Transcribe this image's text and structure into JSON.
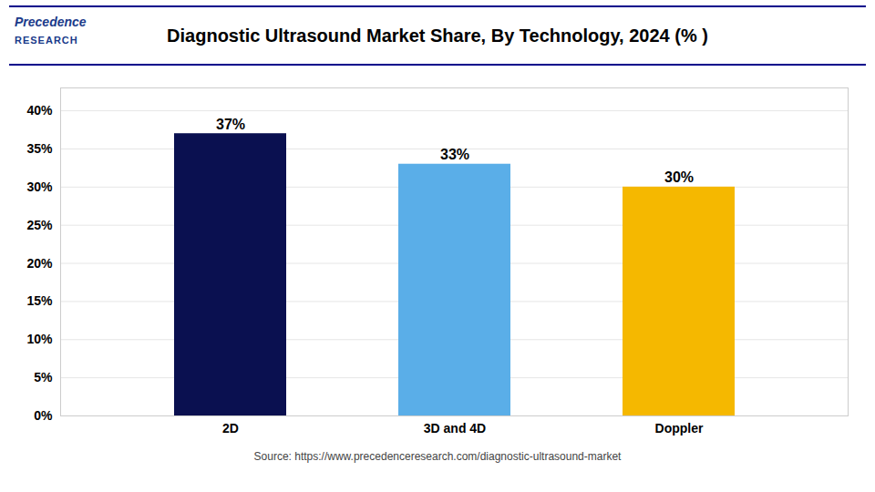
{
  "chart_data": {
    "type": "bar",
    "title": "Diagnostic Ultrasound Market Share, By Technology, 2024 (% )",
    "categories": [
      "2D",
      "3D and 4D",
      "Doppler"
    ],
    "values": [
      37,
      33,
      30
    ],
    "value_labels": [
      "37%",
      "33%",
      "30%"
    ],
    "colors": [
      "#0a1050",
      "#5aaee8",
      "#f5b800"
    ],
    "ylim": [
      0,
      43
    ],
    "yticks": [
      {
        "value": 0,
        "label": "0%"
      },
      {
        "value": 5,
        "label": "5%"
      },
      {
        "value": 10,
        "label": "10%"
      },
      {
        "value": 15,
        "label": "15%"
      },
      {
        "value": 20,
        "label": "20%"
      },
      {
        "value": 25,
        "label": "25%"
      },
      {
        "value": 30,
        "label": "30%"
      },
      {
        "value": 35,
        "label": "35%"
      },
      {
        "value": 40,
        "label": "40%"
      }
    ],
    "grid": true,
    "data_labels": true,
    "annotations": [
      "Precedence",
      "RESEARCH",
      "Source: https://www.precedenceresearch.com/diagnostic-ultrasound-market"
    ]
  }
}
